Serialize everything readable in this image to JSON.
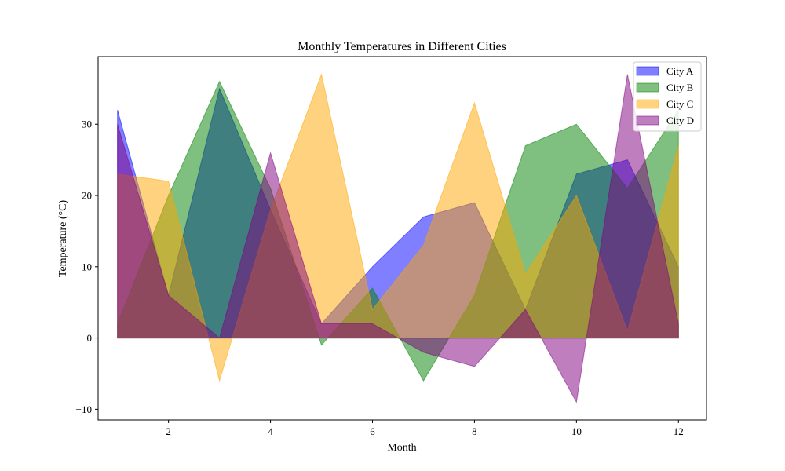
{
  "chart_data": {
    "type": "area",
    "title": "Monthly Temperatures in Different Cities",
    "xlabel": "Month",
    "ylabel": "Temperature (°C)",
    "xlim": [
      0.62,
      12.55
    ],
    "ylim": [
      -11.5,
      39.5
    ],
    "xticks": [
      2,
      4,
      6,
      8,
      10,
      12
    ],
    "xtick_labels": [
      "2",
      "4",
      "6",
      "8",
      "10",
      "12"
    ],
    "yticks": [
      -10,
      0,
      10,
      20,
      30
    ],
    "ytick_labels": [
      "−10",
      "0",
      "10",
      "20",
      "30"
    ],
    "grid": false,
    "legend_position": "top-right",
    "x": [
      1,
      2,
      3,
      4,
      5,
      6,
      7,
      8,
      9,
      10,
      11,
      12
    ],
    "series": [
      {
        "name": "City A",
        "color": "#0000ff",
        "values": [
          32,
          6,
          35,
          18,
          2,
          10,
          17,
          19,
          4,
          23,
          25,
          10
        ]
      },
      {
        "name": "City B",
        "color": "#008000",
        "values": [
          2,
          20,
          36,
          21,
          -1,
          7,
          -6,
          6,
          27,
          30,
          21,
          32
        ]
      },
      {
        "name": "City C",
        "color": "#ffa500",
        "values": [
          23,
          22,
          -6,
          18,
          37,
          4,
          13,
          33,
          9,
          20,
          1,
          27
        ]
      },
      {
        "name": "City D",
        "color": "#800080",
        "values": [
          30,
          6,
          0,
          26,
          2,
          2,
          -2,
          -4,
          4,
          -9,
          37,
          2
        ]
      }
    ]
  }
}
